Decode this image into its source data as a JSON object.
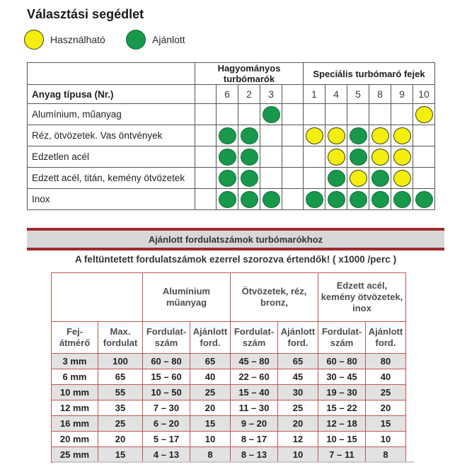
{
  "page_title": "Választási segédlet",
  "legend": [
    {
      "key": "usable",
      "label": "Használható",
      "color": "#f4ee0e"
    },
    {
      "key": "recommended",
      "label": "Ajánlott",
      "color": "#18984b"
    }
  ],
  "selection_table": {
    "group_headers": [
      {
        "label": "Hagyományos turbómarók"
      },
      {
        "label": "Speciális turbómaró fejek"
      }
    ],
    "row_header": "Anyag típusa (Nr.)",
    "column_numbers": [
      "6",
      "2",
      "3",
      "1",
      "4",
      "5",
      "8",
      "9",
      "10"
    ],
    "rows": [
      {
        "label": "Alumínium, műanyag",
        "marks": {
          "3": "recommended",
          "10": "usable"
        }
      },
      {
        "label": "Réz, ötvözetek. Vas öntvények",
        "marks": {
          "6": "recommended",
          "2": "recommended",
          "1": "usable",
          "4": "usable",
          "5": "recommended",
          "8": "usable",
          "9": "usable"
        }
      },
      {
        "label": "Edzetlen acél",
        "marks": {
          "6": "recommended",
          "2": "recommended",
          "4": "usable",
          "5": "recommended",
          "8": "usable",
          "9": "usable"
        }
      },
      {
        "label": "Edzett acél, titán, kemény ötvözetek",
        "marks": {
          "6": "recommended",
          "2": "recommended",
          "4": "recommended",
          "5": "usable",
          "8": "recommended",
          "9": "usable"
        }
      },
      {
        "label": "Inox",
        "marks": {
          "6": "recommended",
          "2": "recommended",
          "3": "recommended",
          "1": "recommended",
          "4": "recommended",
          "5": "recommended",
          "8": "recommended",
          "9": "recommended",
          "10": "recommended"
        }
      }
    ]
  },
  "speed_section": {
    "banner": "Ajánlott fordulatszámok turbómarókhoz",
    "note": "A feltüntetett fordulatszámok ezerrel szorozva értendők! ( x1000 /perc )"
  },
  "speed_table": {
    "group_headers": [
      [
        "Alumínium",
        "műanyag"
      ],
      [
        "Ötvözetek, réz,",
        "bronz,"
      ],
      [
        "Edzett acél,",
        "kemény ötvözetek,",
        "inox"
      ]
    ],
    "column_headers": [
      [
        "Fej-",
        "átmérő"
      ],
      [
        "Max.",
        "fordulat"
      ],
      [
        "Fordulat-",
        "szám"
      ],
      [
        "Ajánlott",
        "ford."
      ],
      [
        "Fordulat-",
        "szám"
      ],
      [
        "Ajánlott",
        "ford."
      ],
      [
        "Fordulat-",
        "szám"
      ],
      [
        "Ajánlott",
        "ford."
      ]
    ],
    "rows": [
      [
        "3 mm",
        "100",
        "60 – 80",
        "65",
        "45 – 80",
        "65",
        "60 – 80",
        "80"
      ],
      [
        "6 mm",
        "65",
        "15 – 60",
        "40",
        "22 – 60",
        "45",
        "30 – 45",
        "40"
      ],
      [
        "10 mm",
        "55",
        "10 – 50",
        "25",
        "15 – 40",
        "30",
        "19 – 30",
        "25"
      ],
      [
        "12 mm",
        "35",
        "7 – 30",
        "20",
        "11 – 30",
        "25",
        "15 – 22",
        "20"
      ],
      [
        "16 mm",
        "25",
        "6 – 20",
        "15",
        "9 – 20",
        "20",
        "12 – 18",
        "15"
      ],
      [
        "20 mm",
        "20",
        "5 – 17",
        "10",
        "8 – 17",
        "12",
        "10 – 15",
        "10"
      ],
      [
        "25 mm",
        "15",
        "4 – 13",
        "8",
        "8 – 13",
        "10",
        "7 – 11",
        "8"
      ]
    ]
  },
  "colors": {
    "recommended_green": "#18984b",
    "usable_yellow": "#f4ee0e",
    "banner_red": "#9e2b2b",
    "banner_gray": "#d8d8d8",
    "speed_table_border": "#bf5552",
    "stripe_gray": "#e2e2e2"
  }
}
